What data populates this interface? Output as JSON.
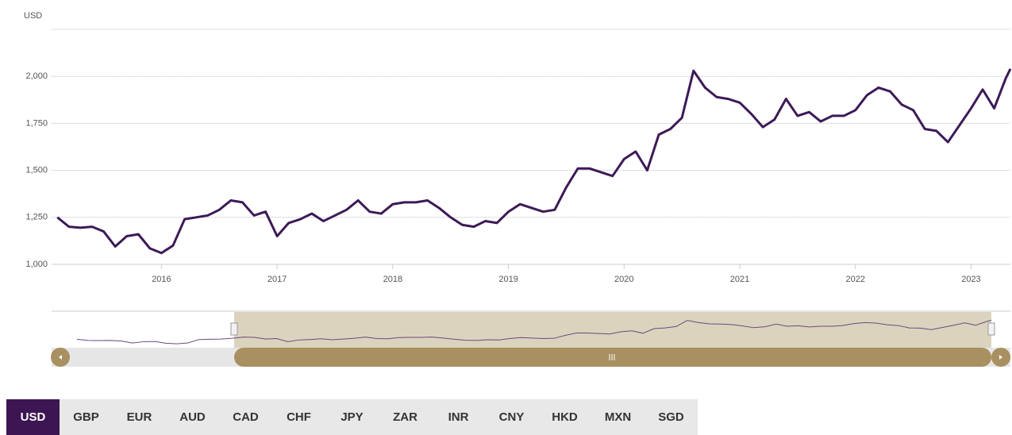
{
  "chart_data": {
    "type": "line",
    "y_label": "USD",
    "x": [
      2015.1,
      2015.2,
      2015.3,
      2015.4,
      2015.5,
      2015.6,
      2015.7,
      2015.8,
      2015.9,
      2016.0,
      2016.1,
      2016.2,
      2016.3,
      2016.4,
      2016.5,
      2016.6,
      2016.7,
      2016.8,
      2016.9,
      2017.0,
      2017.1,
      2017.2,
      2017.3,
      2017.4,
      2017.5,
      2017.6,
      2017.7,
      2017.8,
      2017.9,
      2018.0,
      2018.1,
      2018.2,
      2018.3,
      2018.4,
      2018.5,
      2018.6,
      2018.7,
      2018.8,
      2018.9,
      2019.0,
      2019.1,
      2019.2,
      2019.3,
      2019.4,
      2019.5,
      2019.6,
      2019.7,
      2019.8,
      2019.9,
      2020.0,
      2020.1,
      2020.2,
      2020.3,
      2020.4,
      2020.5,
      2020.6,
      2020.7,
      2020.8,
      2020.9,
      2021.0,
      2021.1,
      2021.2,
      2021.3,
      2021.4,
      2021.5,
      2021.6,
      2021.7,
      2021.8,
      2021.9,
      2022.0,
      2022.1,
      2022.2,
      2022.3,
      2022.4,
      2022.5,
      2022.6,
      2022.7,
      2022.8,
      2022.9,
      2023.0,
      2023.1,
      2023.2,
      2023.3,
      2023.34
    ],
    "series": [
      {
        "name": "USD",
        "color": "#3d1a57",
        "values": [
          1250,
          1200,
          1195,
          1200,
          1175,
          1095,
          1150,
          1160,
          1085,
          1060,
          1100,
          1240,
          1250,
          1260,
          1290,
          1340,
          1330,
          1260,
          1280,
          1150,
          1220,
          1240,
          1270,
          1230,
          1260,
          1290,
          1340,
          1280,
          1270,
          1320,
          1330,
          1330,
          1340,
          1300,
          1250,
          1210,
          1200,
          1230,
          1220,
          1280,
          1320,
          1300,
          1280,
          1290,
          1410,
          1510,
          1510,
          1490,
          1470,
          1560,
          1600,
          1500,
          1690,
          1720,
          1780,
          2030,
          1940,
          1890,
          1880,
          1860,
          1800,
          1730,
          1770,
          1880,
          1790,
          1810,
          1760,
          1790,
          1790,
          1820,
          1900,
          1940,
          1920,
          1850,
          1820,
          1720,
          1710,
          1650,
          1740,
          1830,
          1930,
          1830,
          1990,
          2040
        ]
      }
    ],
    "xlim": [
      2015.05,
      2023.34
    ],
    "xticks": [
      2016,
      2017,
      2018,
      2019,
      2020,
      2021,
      2022,
      2023
    ],
    "ylim": [
      1000,
      2250
    ],
    "yticks": [
      {
        "value": 1000,
        "label": "1,000"
      },
      {
        "value": 1250,
        "label": "1,250"
      },
      {
        "value": 1500,
        "label": "1,500"
      },
      {
        "value": 1750,
        "label": "1,750"
      },
      {
        "value": 2000,
        "label": "2,000"
      }
    ],
    "grid": true,
    "currencies": [
      "USD",
      "GBP",
      "EUR",
      "AUD",
      "CAD",
      "CHF",
      "JPY",
      "ZAR",
      "INR",
      "CNY",
      "HKD",
      "MXN",
      "SGD"
    ],
    "selected_currency": 0
  }
}
